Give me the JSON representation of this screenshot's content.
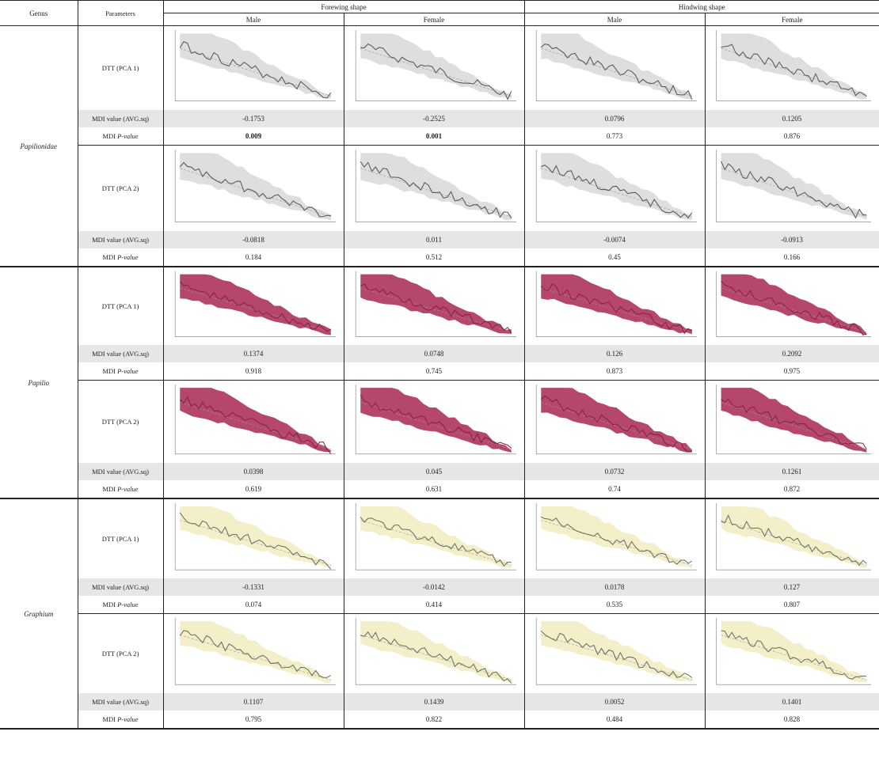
{
  "header": {
    "genus": "Genus",
    "parameters": "Parameters",
    "forewing": "Forewing shape",
    "hindwing": "Hindwing shape",
    "male": "Male",
    "female": "Female"
  },
  "labels": {
    "dtt1": "DTT (PCA 1)",
    "dtt2": "DTT (PCA 2)",
    "mdi_value": "MDI value (AVG.sq)",
    "mdi_p_prefix": "MDI ",
    "mdi_p_italic": "P-value"
  },
  "colors": {
    "gray_fill": "#dedede",
    "gray_line": "#555555",
    "red_fill": "#b5476d",
    "red_line": "#8a1e3f",
    "yellow_fill": "#f3efc8",
    "yellow_line": "#666666",
    "shade_row": "#e6e6e6"
  },
  "genera": [
    {
      "name": "Papilionidae",
      "theme": "gray",
      "pc1": {
        "mdi": [
          "-0.1753",
          "-0.2525",
          "0.0796",
          "0.1205"
        ],
        "p": [
          "0.009",
          "0.001",
          "0.773",
          "0.876"
        ],
        "bold": [
          true,
          true,
          false,
          false
        ]
      },
      "pc2": {
        "mdi": [
          "-0.0818",
          "0.011",
          "-0.0074",
          "-0.0913"
        ],
        "p": [
          "0.184",
          "0.512",
          "0.45",
          "0.166"
        ],
        "bold": [
          false,
          false,
          false,
          false
        ]
      }
    },
    {
      "name": "Papilio",
      "theme": "red",
      "pc1": {
        "mdi": [
          "0.1374",
          "0.0748",
          "0.126",
          "0.2092"
        ],
        "p": [
          "0.918",
          "0.745",
          "0.873",
          "0.975"
        ],
        "bold": [
          false,
          false,
          false,
          false
        ]
      },
      "pc2": {
        "mdi": [
          "0.0398",
          "0.045",
          "0.0732",
          "0.1261"
        ],
        "p": [
          "0.619",
          "0.631",
          "0.74",
          "0.872"
        ],
        "bold": [
          false,
          false,
          false,
          false
        ]
      }
    },
    {
      "name": "Graphium",
      "theme": "yellow",
      "pc1": {
        "mdi": [
          "-0.1331",
          "-0.0142",
          "0.0178",
          "0.127"
        ],
        "p": [
          "0.074",
          "0.414",
          "0.535",
          "0.807"
        ],
        "bold": [
          false,
          false,
          false,
          false
        ]
      },
      "pc2": {
        "mdi": [
          "0.1107",
          "0.1439",
          "0.0052",
          "0.1401"
        ],
        "p": [
          "0.795",
          "0.822",
          "0.484",
          "0.828"
        ],
        "bold": [
          false,
          false,
          false,
          false
        ]
      }
    }
  ]
}
